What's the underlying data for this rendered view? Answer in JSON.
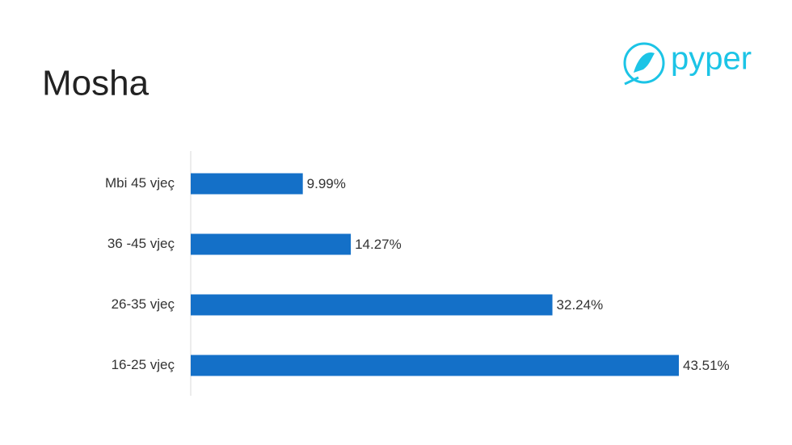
{
  "logo": "pyper",
  "chart_data": {
    "type": "hbar",
    "title": "Mosha",
    "categories": [
      "Mbi 45 vjeç",
      "36 -45 vjeç",
      "26-35 vjeç",
      "16-25 vjeç"
    ],
    "values": [
      9.99,
      14.27,
      32.24,
      43.51
    ],
    "value_labels": [
      "9.99%",
      "14.27%",
      "32.24%",
      "43.51%"
    ],
    "color": "#1470c8"
  }
}
